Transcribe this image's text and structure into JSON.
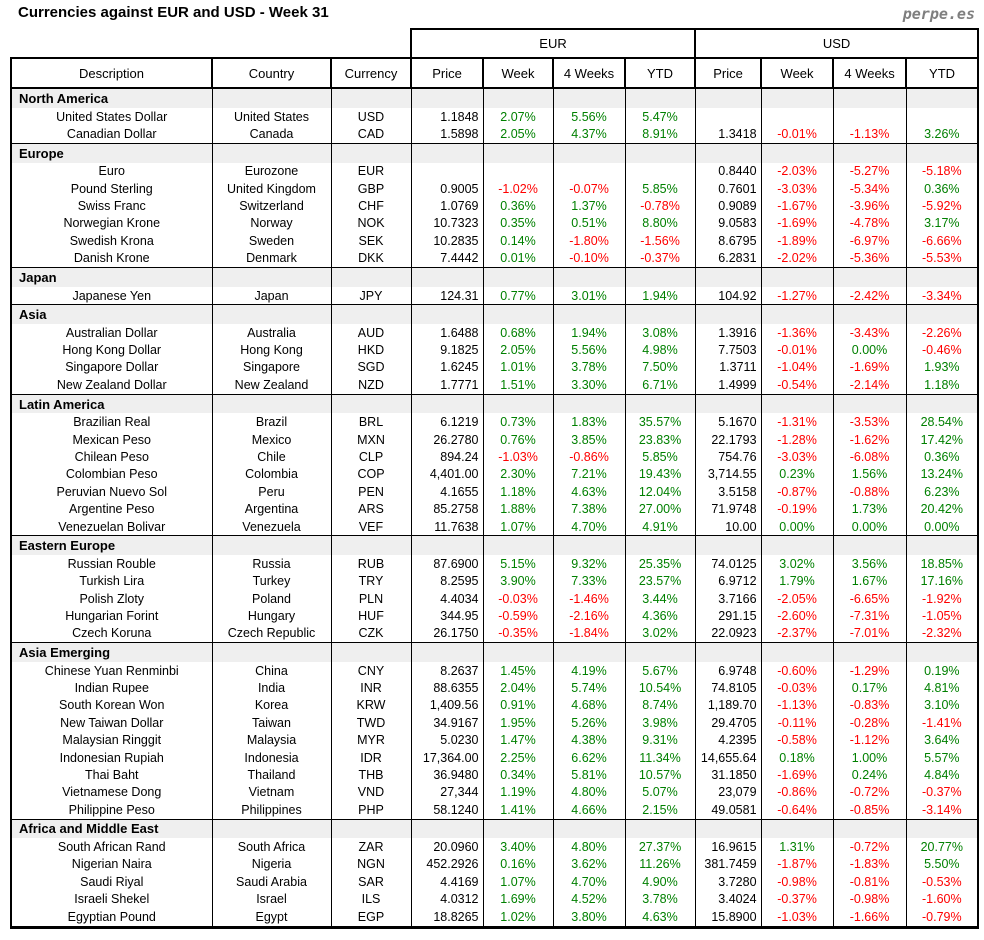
{
  "title": "Currencies against EUR and USD - Week 31",
  "brand": "perpe.es",
  "colors": {
    "positive": "#008000",
    "negative": "#ff0000",
    "section_bg": "#efefef",
    "brand_gray": "#7f7f7f"
  },
  "table": {
    "group_headers": [
      "EUR",
      "USD"
    ],
    "columns": [
      "Description",
      "Country",
      "Currency",
      "Price",
      "Week",
      "4 Weeks",
      "YTD",
      "Price",
      "Week",
      "4 Weeks",
      "YTD"
    ],
    "sections": [
      {
        "label": "North America",
        "rows": [
          {
            "description": "United States Dollar",
            "country": "United States",
            "currency": "USD",
            "eur": {
              "price": "1.1848",
              "week": "2.07%",
              "four_weeks": "5.56%",
              "ytd": "5.47%"
            },
            "usd": {
              "price": "",
              "week": "",
              "four_weeks": "",
              "ytd": ""
            }
          },
          {
            "description": "Canadian Dollar",
            "country": "Canada",
            "currency": "CAD",
            "eur": {
              "price": "1.5898",
              "week": "2.05%",
              "four_weeks": "4.37%",
              "ytd": "8.91%"
            },
            "usd": {
              "price": "1.3418",
              "week": "-0.01%",
              "four_weeks": "-1.13%",
              "ytd": "3.26%"
            }
          }
        ]
      },
      {
        "label": "Europe",
        "rows": [
          {
            "description": "Euro",
            "country": "Eurozone",
            "currency": "EUR",
            "eur": {
              "price": "",
              "week": "",
              "four_weeks": "",
              "ytd": ""
            },
            "usd": {
              "price": "0.8440",
              "week": "-2.03%",
              "four_weeks": "-5.27%",
              "ytd": "-5.18%"
            }
          },
          {
            "description": "Pound Sterling",
            "country": "United Kingdom",
            "currency": "GBP",
            "eur": {
              "price": "0.9005",
              "week": "-1.02%",
              "four_weeks": "-0.07%",
              "ytd": "5.85%"
            },
            "usd": {
              "price": "0.7601",
              "week": "-3.03%",
              "four_weeks": "-5.34%",
              "ytd": "0.36%"
            }
          },
          {
            "description": "Swiss Franc",
            "country": "Switzerland",
            "currency": "CHF",
            "eur": {
              "price": "1.0769",
              "week": "0.36%",
              "four_weeks": "1.37%",
              "ytd": "-0.78%"
            },
            "usd": {
              "price": "0.9089",
              "week": "-1.67%",
              "four_weeks": "-3.96%",
              "ytd": "-5.92%"
            }
          },
          {
            "description": "Norwegian Krone",
            "country": "Norway",
            "currency": "NOK",
            "eur": {
              "price": "10.7323",
              "week": "0.35%",
              "four_weeks": "0.51%",
              "ytd": "8.80%"
            },
            "usd": {
              "price": "9.0583",
              "week": "-1.69%",
              "four_weeks": "-4.78%",
              "ytd": "3.17%"
            }
          },
          {
            "description": "Swedish Krona",
            "country": "Sweden",
            "currency": "SEK",
            "eur": {
              "price": "10.2835",
              "week": "0.14%",
              "four_weeks": "-1.80%",
              "ytd": "-1.56%"
            },
            "usd": {
              "price": "8.6795",
              "week": "-1.89%",
              "four_weeks": "-6.97%",
              "ytd": "-6.66%"
            }
          },
          {
            "description": "Danish Krone",
            "country": "Denmark",
            "currency": "DKK",
            "eur": {
              "price": "7.4442",
              "week": "0.01%",
              "four_weeks": "-0.10%",
              "ytd": "-0.37%"
            },
            "usd": {
              "price": "6.2831",
              "week": "-2.02%",
              "four_weeks": "-5.36%",
              "ytd": "-5.53%"
            }
          }
        ]
      },
      {
        "label": "Japan",
        "rows": [
          {
            "description": "Japanese Yen",
            "country": "Japan",
            "currency": "JPY",
            "eur": {
              "price": "124.31",
              "week": "0.77%",
              "four_weeks": "3.01%",
              "ytd": "1.94%"
            },
            "usd": {
              "price": "104.92",
              "week": "-1.27%",
              "four_weeks": "-2.42%",
              "ytd": "-3.34%"
            }
          }
        ]
      },
      {
        "label": "Asia",
        "rows": [
          {
            "description": "Australian Dollar",
            "country": "Australia",
            "currency": "AUD",
            "eur": {
              "price": "1.6488",
              "week": "0.68%",
              "four_weeks": "1.94%",
              "ytd": "3.08%"
            },
            "usd": {
              "price": "1.3916",
              "week": "-1.36%",
              "four_weeks": "-3.43%",
              "ytd": "-2.26%"
            }
          },
          {
            "description": "Hong Kong Dollar",
            "country": "Hong Kong",
            "currency": "HKD",
            "eur": {
              "price": "9.1825",
              "week": "2.05%",
              "four_weeks": "5.56%",
              "ytd": "4.98%"
            },
            "usd": {
              "price": "7.7503",
              "week": "-0.01%",
              "four_weeks": "0.00%",
              "ytd": "-0.46%"
            }
          },
          {
            "description": "Singapore Dollar",
            "country": "Singapore",
            "currency": "SGD",
            "eur": {
              "price": "1.6245",
              "week": "1.01%",
              "four_weeks": "3.78%",
              "ytd": "7.50%"
            },
            "usd": {
              "price": "1.3711",
              "week": "-1.04%",
              "four_weeks": "-1.69%",
              "ytd": "1.93%"
            }
          },
          {
            "description": "New Zealand Dollar",
            "country": "New Zealand",
            "currency": "NZD",
            "eur": {
              "price": "1.7771",
              "week": "1.51%",
              "four_weeks": "3.30%",
              "ytd": "6.71%"
            },
            "usd": {
              "price": "1.4999",
              "week": "-0.54%",
              "four_weeks": "-2.14%",
              "ytd": "1.18%"
            }
          }
        ]
      },
      {
        "label": "Latin America",
        "rows": [
          {
            "description": "Brazilian Real",
            "country": "Brazil",
            "currency": "BRL",
            "eur": {
              "price": "6.1219",
              "week": "0.73%",
              "four_weeks": "1.83%",
              "ytd": "35.57%"
            },
            "usd": {
              "price": "5.1670",
              "week": "-1.31%",
              "four_weeks": "-3.53%",
              "ytd": "28.54%"
            }
          },
          {
            "description": "Mexican Peso",
            "country": "Mexico",
            "currency": "MXN",
            "eur": {
              "price": "26.2780",
              "week": "0.76%",
              "four_weeks": "3.85%",
              "ytd": "23.83%"
            },
            "usd": {
              "price": "22.1793",
              "week": "-1.28%",
              "four_weeks": "-1.62%",
              "ytd": "17.42%"
            }
          },
          {
            "description": "Chilean Peso",
            "country": "Chile",
            "currency": "CLP",
            "eur": {
              "price": "894.24",
              "week": "-1.03%",
              "four_weeks": "-0.86%",
              "ytd": "5.85%"
            },
            "usd": {
              "price": "754.76",
              "week": "-3.03%",
              "four_weeks": "-6.08%",
              "ytd": "0.36%"
            }
          },
          {
            "description": "Colombian Peso",
            "country": "Colombia",
            "currency": "COP",
            "eur": {
              "price": "4,401.00",
              "week": "2.30%",
              "four_weeks": "7.21%",
              "ytd": "19.43%"
            },
            "usd": {
              "price": "3,714.55",
              "week": "0.23%",
              "four_weeks": "1.56%",
              "ytd": "13.24%"
            }
          },
          {
            "description": "Peruvian Nuevo Sol",
            "country": "Peru",
            "currency": "PEN",
            "eur": {
              "price": "4.1655",
              "week": "1.18%",
              "four_weeks": "4.63%",
              "ytd": "12.04%"
            },
            "usd": {
              "price": "3.5158",
              "week": "-0.87%",
              "four_weeks": "-0.88%",
              "ytd": "6.23%"
            }
          },
          {
            "description": "Argentine Peso",
            "country": "Argentina",
            "currency": "ARS",
            "eur": {
              "price": "85.2758",
              "week": "1.88%",
              "four_weeks": "7.38%",
              "ytd": "27.00%"
            },
            "usd": {
              "price": "71.9748",
              "week": "-0.19%",
              "four_weeks": "1.73%",
              "ytd": "20.42%"
            }
          },
          {
            "description": "Venezuelan Bolivar",
            "country": "Venezuela",
            "currency": "VEF",
            "eur": {
              "price": "11.7638",
              "week": "1.07%",
              "four_weeks": "4.70%",
              "ytd": "4.91%"
            },
            "usd": {
              "price": "10.00",
              "week": "0.00%",
              "four_weeks": "0.00%",
              "ytd": "0.00%"
            }
          }
        ]
      },
      {
        "label": "Eastern Europe",
        "rows": [
          {
            "description": "Russian Rouble",
            "country": "Russia",
            "currency": "RUB",
            "eur": {
              "price": "87.6900",
              "week": "5.15%",
              "four_weeks": "9.32%",
              "ytd": "25.35%"
            },
            "usd": {
              "price": "74.0125",
              "week": "3.02%",
              "four_weeks": "3.56%",
              "ytd": "18.85%"
            }
          },
          {
            "description": "Turkish Lira",
            "country": "Turkey",
            "currency": "TRY",
            "eur": {
              "price": "8.2595",
              "week": "3.90%",
              "four_weeks": "7.33%",
              "ytd": "23.57%"
            },
            "usd": {
              "price": "6.9712",
              "week": "1.79%",
              "four_weeks": "1.67%",
              "ytd": "17.16%"
            }
          },
          {
            "description": "Polish Zloty",
            "country": "Poland",
            "currency": "PLN",
            "eur": {
              "price": "4.4034",
              "week": "-0.03%",
              "four_weeks": "-1.46%",
              "ytd": "3.44%"
            },
            "usd": {
              "price": "3.7166",
              "week": "-2.05%",
              "four_weeks": "-6.65%",
              "ytd": "-1.92%"
            }
          },
          {
            "description": "Hungarian Forint",
            "country": "Hungary",
            "currency": "HUF",
            "eur": {
              "price": "344.95",
              "week": "-0.59%",
              "four_weeks": "-2.16%",
              "ytd": "4.36%"
            },
            "usd": {
              "price": "291.15",
              "week": "-2.60%",
              "four_weeks": "-7.31%",
              "ytd": "-1.05%"
            }
          },
          {
            "description": "Czech Koruna",
            "country": "Czech Republic",
            "currency": "CZK",
            "eur": {
              "price": "26.1750",
              "week": "-0.35%",
              "four_weeks": "-1.84%",
              "ytd": "3.02%"
            },
            "usd": {
              "price": "22.0923",
              "week": "-2.37%",
              "four_weeks": "-7.01%",
              "ytd": "-2.32%"
            }
          }
        ]
      },
      {
        "label": "Asia Emerging",
        "rows": [
          {
            "description": "Chinese Yuan Renminbi",
            "country": "China",
            "currency": "CNY",
            "eur": {
              "price": "8.2637",
              "week": "1.45%",
              "four_weeks": "4.19%",
              "ytd": "5.67%"
            },
            "usd": {
              "price": "6.9748",
              "week": "-0.60%",
              "four_weeks": "-1.29%",
              "ytd": "0.19%"
            }
          },
          {
            "description": "Indian Rupee",
            "country": "India",
            "currency": "INR",
            "eur": {
              "price": "88.6355",
              "week": "2.04%",
              "four_weeks": "5.74%",
              "ytd": "10.54%"
            },
            "usd": {
              "price": "74.8105",
              "week": "-0.03%",
              "four_weeks": "0.17%",
              "ytd": "4.81%"
            }
          },
          {
            "description": "South Korean Won",
            "country": "Korea",
            "currency": "KRW",
            "eur": {
              "price": "1,409.56",
              "week": "0.91%",
              "four_weeks": "4.68%",
              "ytd": "8.74%"
            },
            "usd": {
              "price": "1,189.70",
              "week": "-1.13%",
              "four_weeks": "-0.83%",
              "ytd": "3.10%"
            }
          },
          {
            "description": "New Taiwan Dollar",
            "country": "Taiwan",
            "currency": "TWD",
            "eur": {
              "price": "34.9167",
              "week": "1.95%",
              "four_weeks": "5.26%",
              "ytd": "3.98%"
            },
            "usd": {
              "price": "29.4705",
              "week": "-0.11%",
              "four_weeks": "-0.28%",
              "ytd": "-1.41%"
            }
          },
          {
            "description": "Malaysian Ringgit",
            "country": "Malaysia",
            "currency": "MYR",
            "eur": {
              "price": "5.0230",
              "week": "1.47%",
              "four_weeks": "4.38%",
              "ytd": "9.31%"
            },
            "usd": {
              "price": "4.2395",
              "week": "-0.58%",
              "four_weeks": "-1.12%",
              "ytd": "3.64%"
            }
          },
          {
            "description": "Indonesian Rupiah",
            "country": "Indonesia",
            "currency": "IDR",
            "eur": {
              "price": "17,364.00",
              "week": "2.25%",
              "four_weeks": "6.62%",
              "ytd": "11.34%"
            },
            "usd": {
              "price": "14,655.64",
              "week": "0.18%",
              "four_weeks": "1.00%",
              "ytd": "5.57%"
            }
          },
          {
            "description": "Thai Baht",
            "country": "Thailand",
            "currency": "THB",
            "eur": {
              "price": "36.9480",
              "week": "0.34%",
              "four_weeks": "5.81%",
              "ytd": "10.57%"
            },
            "usd": {
              "price": "31.1850",
              "week": "-1.69%",
              "four_weeks": "0.24%",
              "ytd": "4.84%"
            }
          },
          {
            "description": "Vietnamese Dong",
            "country": "Vietnam",
            "currency": "VND",
            "eur": {
              "price": "27,344",
              "week": "1.19%",
              "four_weeks": "4.80%",
              "ytd": "5.07%"
            },
            "usd": {
              "price": "23,079",
              "week": "-0.86%",
              "four_weeks": "-0.72%",
              "ytd": "-0.37%"
            }
          },
          {
            "description": "Philippine Peso",
            "country": "Philippines",
            "currency": "PHP",
            "eur": {
              "price": "58.1240",
              "week": "1.41%",
              "four_weeks": "4.66%",
              "ytd": "2.15%"
            },
            "usd": {
              "price": "49.0581",
              "week": "-0.64%",
              "four_weeks": "-0.85%",
              "ytd": "-3.14%"
            }
          }
        ]
      },
      {
        "label": "Africa and Middle East",
        "rows": [
          {
            "description": "South African Rand",
            "country": "South Africa",
            "currency": "ZAR",
            "eur": {
              "price": "20.0960",
              "week": "3.40%",
              "four_weeks": "4.80%",
              "ytd": "27.37%"
            },
            "usd": {
              "price": "16.9615",
              "week": "1.31%",
              "four_weeks": "-0.72%",
              "ytd": "20.77%"
            }
          },
          {
            "description": "Nigerian Naira",
            "country": "Nigeria",
            "currency": "NGN",
            "eur": {
              "price": "452.2926",
              "week": "0.16%",
              "four_weeks": "3.62%",
              "ytd": "11.26%"
            },
            "usd": {
              "price": "381.7459",
              "week": "-1.87%",
              "four_weeks": "-1.83%",
              "ytd": "5.50%"
            }
          },
          {
            "description": "Saudi Riyal",
            "country": "Saudi Arabia",
            "currency": "SAR",
            "eur": {
              "price": "4.4169",
              "week": "1.07%",
              "four_weeks": "4.70%",
              "ytd": "4.90%"
            },
            "usd": {
              "price": "3.7280",
              "week": "-0.98%",
              "four_weeks": "-0.81%",
              "ytd": "-0.53%"
            }
          },
          {
            "description": "Israeli Shekel",
            "country": "Israel",
            "currency": "ILS",
            "eur": {
              "price": "4.0312",
              "week": "1.69%",
              "four_weeks": "4.52%",
              "ytd": "3.78%"
            },
            "usd": {
              "price": "3.4024",
              "week": "-0.37%",
              "four_weeks": "-0.98%",
              "ytd": "-1.60%"
            }
          },
          {
            "description": "Egyptian Pound",
            "country": "Egypt",
            "currency": "EGP",
            "eur": {
              "price": "18.8265",
              "week": "1.02%",
              "four_weeks": "3.80%",
              "ytd": "4.63%"
            },
            "usd": {
              "price": "15.8900",
              "week": "-1.03%",
              "four_weeks": "-1.66%",
              "ytd": "-0.79%"
            }
          }
        ]
      }
    ]
  }
}
